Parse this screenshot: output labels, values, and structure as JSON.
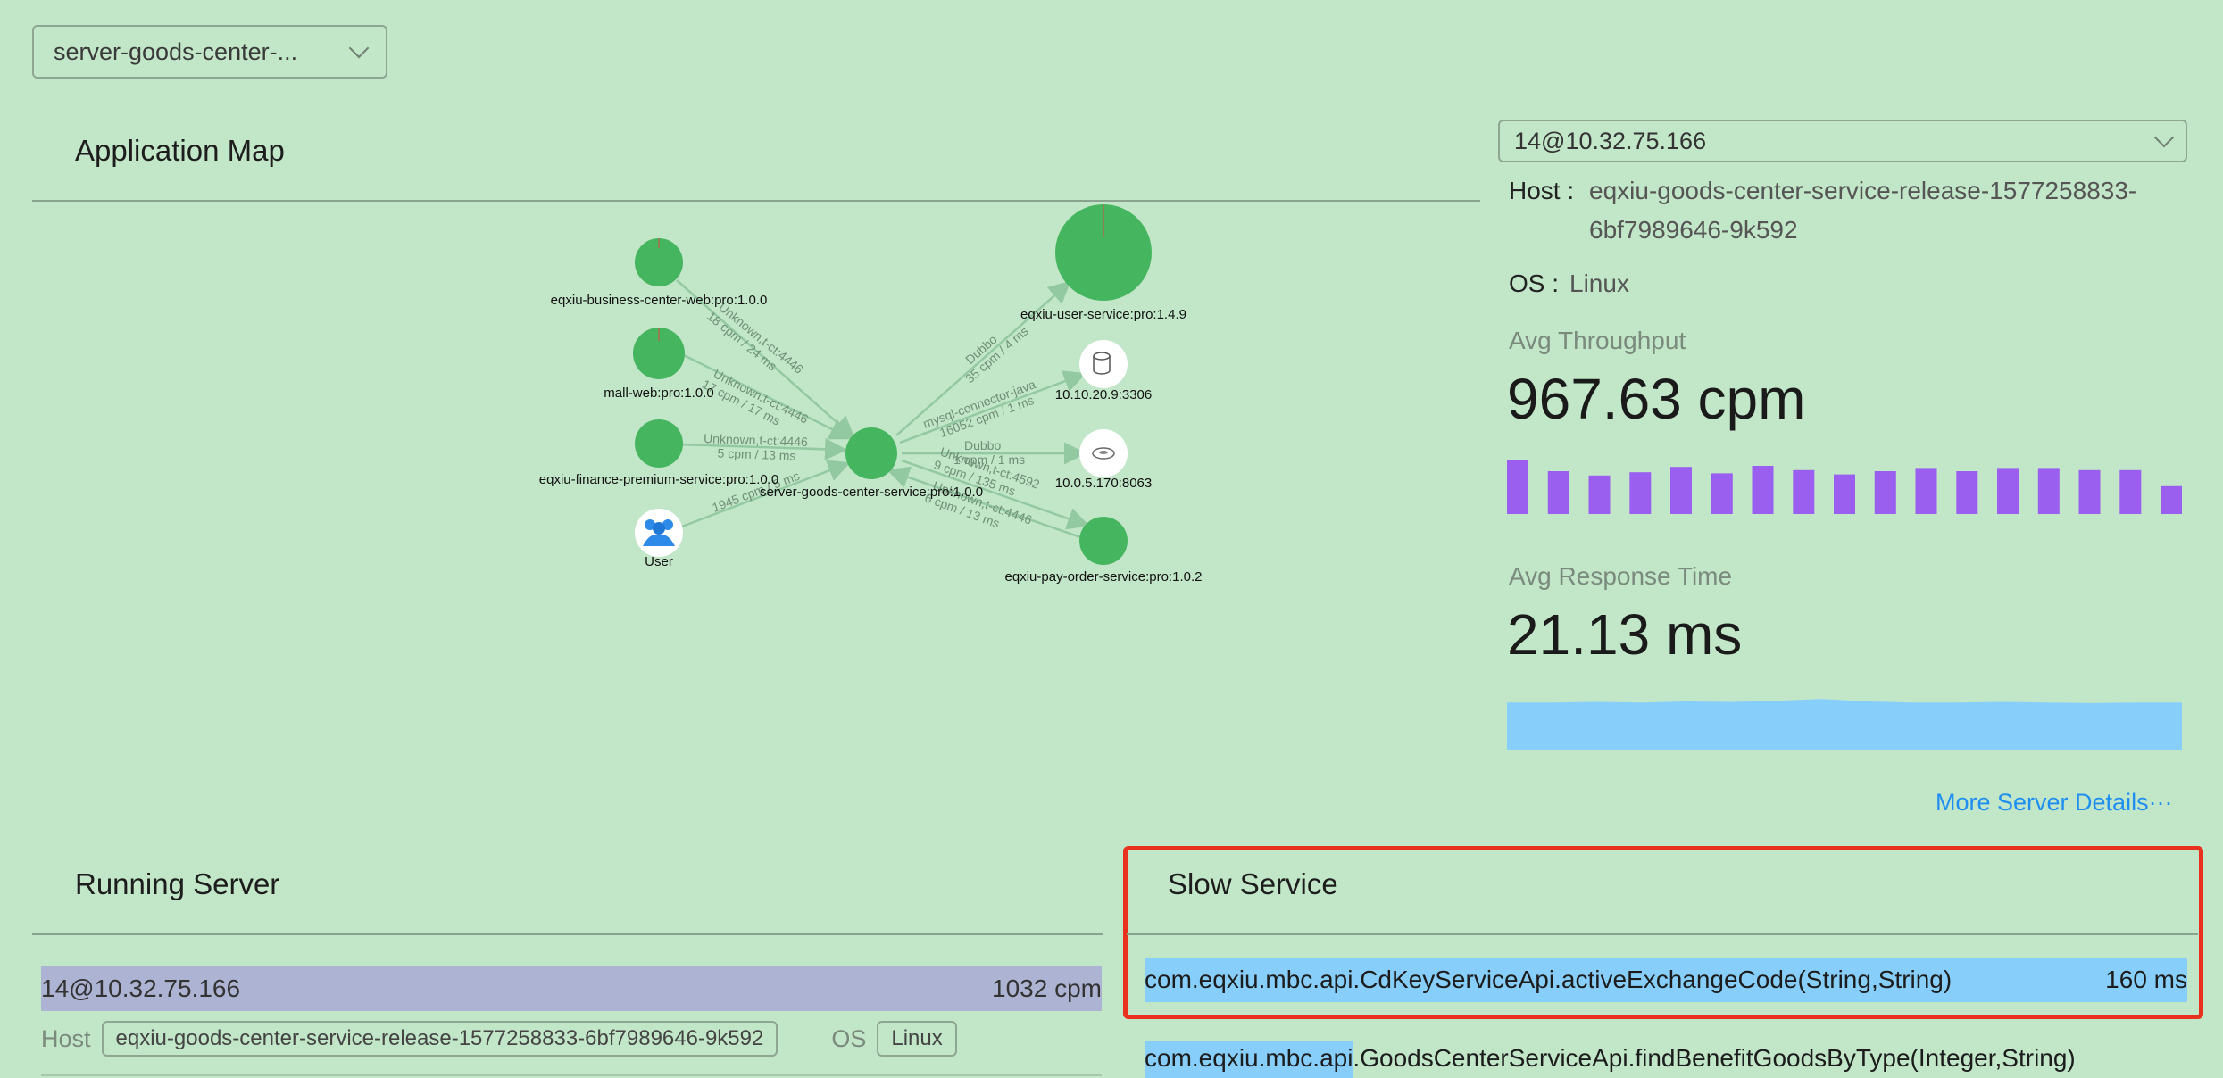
{
  "service_select": {
    "value": "server-goods-center-..."
  },
  "app_map": {
    "title": "Application Map",
    "nodes": {
      "business_web": "eqxiu-business-center-web:pro:1.0.0",
      "mall_web": "mall-web:pro:1.0.0",
      "finance": "eqxiu-finance-premium-service:pro:1.0.0",
      "user": "User",
      "center": "server-goods-center-service:pro:1.0.0",
      "user_service": "eqxiu-user-service:pro:1.4.9",
      "mysql": "10.10.20.9:3306",
      "redis": "10.0.5.170:8063",
      "pay_order": "eqxiu-pay-order-service:pro:1.0.2"
    },
    "edges": {
      "e1_a": "Unknown,t-ct:4446",
      "e1_b": "18 cpm / 24 ms",
      "e2_a": "Unknown,t-ct:4446",
      "e2_b": "17 cpm / 17 ms",
      "e3_a": "Unknown,t-ct:4446",
      "e3_b": "5 cpm / 13 ms",
      "e4_a": "1945 cpm / 5 ms",
      "e5_a": "Dubbo",
      "e5_b": "35 cpm / 4 ms",
      "e6_a": "mysql-connector-java",
      "e6_b": "16052 cpm / 1 ms",
      "e7_a": "Dubbo",
      "e7_b": "1 cpm / 1 ms",
      "e8_a": "Unknown,t-ct:4592",
      "e8_b": "9 cpm / 135 ms",
      "e9_a": "Unknown,t-ct:4446",
      "e9_b": "6 cpm / 13 ms"
    }
  },
  "instance_panel": {
    "select_value": "14@10.32.75.166",
    "host_label": "Host :",
    "host_line1": "eqxiu-goods-center-service-release-1577258833-",
    "host_line2": "6bf7989646-9k592",
    "os_label": "OS :",
    "os_value": "Linux",
    "throughput_label": "Avg Throughput",
    "throughput_value": "967.63 cpm",
    "throughput_bars": [
      1.0,
      0.8,
      0.72,
      0.78,
      0.88,
      0.76,
      0.9,
      0.82,
      0.74,
      0.8,
      0.86,
      0.8,
      0.86,
      0.86,
      0.82,
      0.82,
      0.52
    ],
    "throughput_color": "#9b5ff0",
    "response_label": "Avg Response Time",
    "response_value": "21.13 ms",
    "response_series": [
      0.8,
      0.8,
      0.81,
      0.8,
      0.82,
      0.81,
      0.83,
      0.86,
      0.82,
      0.8,
      0.8,
      0.81,
      0.8,
      0.79,
      0.8,
      0.8
    ],
    "response_color": "#87cffa",
    "more_link": "More Server Details···"
  },
  "running_server": {
    "title": "Running Server",
    "row": {
      "name": "14@10.32.75.166",
      "value": "1032 cpm"
    },
    "host_label": "Host",
    "host_value": "eqxiu-goods-center-service-release-1577258833-6bf7989646-9k592",
    "os_label": "OS",
    "os_value": "Linux"
  },
  "slow_service": {
    "title": "Slow Service",
    "items": [
      {
        "name": "com.eqxiu.mbc.api.CdKeyServiceApi.activeExchangeCode(String,String)",
        "value": "160 ms",
        "fill": 1.0
      },
      {
        "name": "com.eqxiu.mbc.api.GoodsCenterServiceApi.findBenefitGoodsByType(Integer,String)",
        "value": "",
        "fill": 0.2
      }
    ]
  }
}
